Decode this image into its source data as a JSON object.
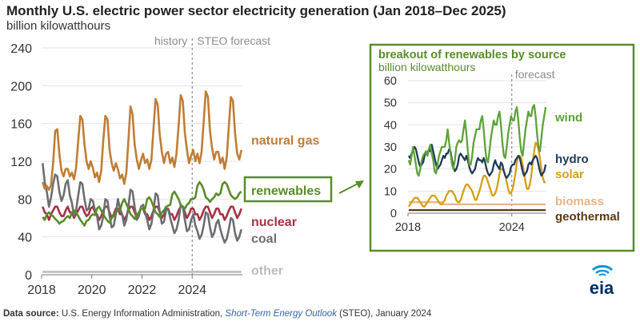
{
  "title": "Monthly U.S. electric power sector electricity generation (Jan 2018–Dec 2025)",
  "subtitle": "billion kilowatthours",
  "source": {
    "label": "Data source:",
    "text1": " U.S. Energy Information Administration, ",
    "link": "Short-Term Energy Outlook",
    "text2": " (STEO), January 2024"
  },
  "logo_text": "eia",
  "colors": {
    "natural_gas": "#c07d35",
    "renewables": "#5b8c2a",
    "nuclear": "#a83243",
    "coal": "#6d6e71",
    "other": "#bcbcbc",
    "wind": "#5fa23a",
    "hydro": "#1f3b5c",
    "solar": "#d4a017",
    "biomass": "#e8b48a",
    "geothermal": "#5a3a12",
    "axis_text": "#333333",
    "divider": "#8c8c8c"
  },
  "chart_data": [
    {
      "type": "line",
      "ylim": [
        0,
        240
      ],
      "yticks": [
        0,
        40,
        80,
        120,
        160,
        200,
        240
      ],
      "xlim": [
        2018,
        2026
      ],
      "xticks": [
        "2018",
        "2020",
        "2022",
        "2024"
      ],
      "x_tick_values": [
        2018,
        2020,
        2022,
        2024
      ],
      "history_label": "history",
      "forecast_label": "STEO forecast",
      "forecast_start": 2024,
      "grid": "horizontal",
      "series": [
        {
          "name": "natural gas",
          "key": "natural_gas",
          "values": [
            98,
            91,
            94,
            90,
            95,
            118,
            152,
            154,
            128,
            110,
            104,
            112,
            112,
            104,
            108,
            101,
            113,
            142,
            168,
            164,
            138,
            120,
            112,
            120,
            113,
            103,
            108,
            98,
            110,
            142,
            168,
            164,
            132,
            118,
            110,
            118,
            112,
            102,
            106,
            96,
            108,
            142,
            178,
            170,
            138,
            122,
            112,
            121,
            128,
            118,
            122,
            112,
            122,
            155,
            186,
            180,
            148,
            130,
            118,
            128,
            130,
            118,
            124,
            114,
            128,
            158,
            190,
            184,
            150,
            132,
            118,
            126,
            132,
            120,
            128,
            118,
            130,
            162,
            194,
            188,
            152,
            134,
            122,
            130,
            130,
            118,
            124,
            112,
            124,
            156,
            188,
            184,
            150,
            128,
            122,
            132
          ]
        },
        {
          "name": "renewables",
          "key": "renewables",
          "values": [
            61,
            58,
            64,
            66,
            63,
            62,
            59,
            57,
            54,
            56,
            57,
            60,
            62,
            60,
            66,
            68,
            66,
            62,
            58,
            55,
            52,
            57,
            58,
            62,
            64,
            63,
            70,
            72,
            68,
            64,
            60,
            57,
            55,
            60,
            62,
            66,
            68,
            68,
            76,
            80,
            75,
            70,
            64,
            62,
            59,
            63,
            66,
            70,
            70,
            70,
            80,
            82,
            78,
            72,
            66,
            64,
            61,
            66,
            68,
            72,
            73,
            74,
            85,
            88,
            84,
            80,
            74,
            72,
            70,
            74,
            76,
            80,
            80,
            82,
            94,
            98,
            95,
            90,
            82,
            80,
            77,
            80,
            82,
            86,
            84,
            86,
            96,
            98,
            96,
            90,
            84,
            82,
            80,
            82,
            86,
            88
          ]
        },
        {
          "name": "nuclear",
          "key": "nuclear",
          "values": [
            72,
            66,
            64,
            58,
            64,
            68,
            72,
            72,
            66,
            62,
            62,
            68,
            72,
            66,
            66,
            60,
            64,
            68,
            72,
            72,
            66,
            62,
            64,
            70,
            72,
            66,
            64,
            58,
            62,
            68,
            72,
            72,
            66,
            60,
            64,
            70,
            70,
            64,
            64,
            58,
            62,
            68,
            72,
            72,
            66,
            60,
            64,
            70,
            70,
            64,
            64,
            58,
            62,
            68,
            72,
            72,
            66,
            60,
            64,
            70,
            70,
            64,
            64,
            58,
            62,
            68,
            72,
            72,
            66,
            60,
            64,
            70,
            70,
            64,
            64,
            58,
            62,
            68,
            72,
            72,
            66,
            60,
            64,
            70,
            70,
            64,
            64,
            58,
            62,
            68,
            72,
            72,
            66,
            60,
            64,
            70
          ]
        },
        {
          "name": "coal",
          "key": "coal",
          "values": [
            118,
            98,
            88,
            72,
            82,
            96,
            106,
            104,
            88,
            78,
            84,
            96,
            100,
            84,
            76,
            62,
            68,
            84,
            98,
            96,
            80,
            68,
            70,
            80,
            78,
            68,
            62,
            48,
            52,
            62,
            80,
            78,
            62,
            50,
            52,
            64,
            80,
            70,
            64,
            52,
            58,
            72,
            90,
            88,
            72,
            58,
            62,
            72,
            74,
            66,
            58,
            48,
            54,
            68,
            86,
            84,
            66,
            54,
            56,
            68,
            70,
            60,
            52,
            44,
            48,
            58,
            74,
            72,
            58,
            46,
            48,
            58,
            64,
            52,
            46,
            38,
            42,
            52,
            66,
            64,
            50,
            40,
            44,
            54,
            58,
            48,
            40,
            34,
            38,
            48,
            60,
            58,
            44,
            36,
            40,
            48
          ]
        },
        {
          "name": "other",
          "key": "other",
          "values": [
            3,
            3,
            3,
            3,
            3,
            3,
            3,
            3,
            3,
            3,
            3,
            3,
            3,
            3,
            3,
            3,
            3,
            3,
            3,
            3,
            3,
            3,
            3,
            3,
            3,
            3,
            3,
            3,
            3,
            3,
            3,
            3,
            3,
            3,
            3,
            3,
            3,
            3,
            3,
            3,
            3,
            3,
            3,
            3,
            3,
            3,
            3,
            3,
            3,
            3,
            3,
            3,
            3,
            3,
            3,
            3,
            3,
            3,
            3,
            3,
            3,
            3,
            3,
            3,
            3,
            3,
            3,
            3,
            3,
            3,
            3,
            3,
            3,
            3,
            3,
            3,
            3,
            3,
            3,
            3,
            3,
            3,
            3,
            3,
            3,
            3,
            3,
            3,
            3,
            3,
            3,
            3,
            3,
            3,
            3,
            3
          ]
        }
      ]
    },
    {
      "type": "line",
      "title": "breakout of renewables by source",
      "ylabel": "billion kilowatthours",
      "ylim": [
        0,
        60
      ],
      "yticks": [
        0,
        10,
        20,
        30,
        40,
        50,
        60
      ],
      "xlim": [
        2018,
        2026
      ],
      "xticks": [
        "2018",
        "2024"
      ],
      "x_tick_values": [
        2018,
        2024
      ],
      "forecast_label": "forecast",
      "forecast_start": 2024,
      "grid": "horizontal",
      "series": [
        {
          "name": "wind",
          "key": "wind",
          "values": [
            24,
            22,
            26,
            30,
            26,
            22,
            18,
            17,
            20,
            24,
            26,
            27,
            28,
            26,
            29,
            31,
            27,
            24,
            19,
            18,
            22,
            26,
            28,
            30,
            30,
            30,
            33,
            38,
            32,
            27,
            22,
            20,
            24,
            30,
            32,
            33,
            32,
            33,
            38,
            42,
            36,
            28,
            22,
            22,
            26,
            32,
            35,
            38,
            38,
            38,
            42,
            44,
            38,
            30,
            24,
            23,
            28,
            34,
            38,
            42,
            40,
            40,
            44,
            46,
            40,
            32,
            26,
            25,
            30,
            36,
            40,
            44,
            42,
            42,
            46,
            48,
            42,
            34,
            28,
            26,
            32,
            38,
            42,
            46,
            44,
            44,
            48,
            49,
            44,
            36,
            30,
            28,
            34,
            40,
            44,
            48
          ]
        },
        {
          "name": "hydro",
          "key": "hydro",
          "values": [
            26,
            25,
            27,
            28,
            30,
            29,
            26,
            23,
            21,
            22,
            23,
            26,
            28,
            27,
            29,
            28,
            31,
            28,
            25,
            22,
            20,
            21,
            22,
            24,
            26,
            25,
            27,
            27,
            29,
            28,
            24,
            21,
            19,
            20,
            22,
            26,
            27,
            26,
            25,
            24,
            26,
            24,
            21,
            19,
            18,
            19,
            20,
            23,
            25,
            24,
            24,
            23,
            25,
            23,
            20,
            18,
            17,
            18,
            19,
            22,
            24,
            22,
            21,
            20,
            23,
            22,
            19,
            17,
            16,
            17,
            18,
            21,
            22,
            22,
            24,
            25,
            26,
            25,
            22,
            19,
            17,
            18,
            19,
            22,
            23,
            22,
            24,
            25,
            26,
            25,
            22,
            19,
            17,
            18,
            19,
            22
          ]
        },
        {
          "name": "solar",
          "key": "solar",
          "values": [
            3,
            4,
            5,
            6,
            7,
            7,
            7,
            6,
            5,
            4,
            3,
            3,
            4,
            5,
            6,
            7,
            8,
            8,
            8,
            7,
            6,
            5,
            4,
            4,
            5,
            6,
            8,
            9,
            10,
            10,
            10,
            9,
            8,
            6,
            5,
            5,
            6,
            8,
            10,
            12,
            13,
            13,
            12,
            11,
            10,
            8,
            6,
            6,
            8,
            10,
            12,
            15,
            17,
            17,
            16,
            14,
            12,
            10,
            8,
            8,
            9,
            11,
            14,
            18,
            20,
            20,
            19,
            17,
            14,
            11,
            9,
            9,
            11,
            14,
            18,
            23,
            26,
            26,
            25,
            22,
            18,
            14,
            11,
            11,
            13,
            17,
            23,
            28,
            32,
            31,
            29,
            25,
            20,
            16,
            14,
            14
          ]
        },
        {
          "name": "biomass",
          "key": "biomass",
          "values": [
            5,
            5,
            5,
            5,
            5,
            5,
            5,
            5,
            5,
            5,
            5,
            5,
            5,
            5,
            5,
            5,
            5,
            5,
            5,
            5,
            5,
            5,
            5,
            5,
            4,
            4,
            4,
            4,
            4,
            4,
            4,
            4,
            4,
            4,
            4,
            4,
            4,
            4,
            4,
            4,
            4,
            4,
            4,
            4,
            4,
            4,
            4,
            4,
            4,
            4,
            4,
            4,
            4,
            4,
            4,
            4,
            4,
            4,
            4,
            4,
            4,
            4,
            4,
            4,
            4,
            4,
            4,
            4,
            4,
            4,
            4,
            4,
            4,
            4,
            4,
            4,
            4,
            4,
            4,
            4,
            4,
            4,
            4,
            4,
            4,
            4,
            4,
            4,
            4,
            4,
            4,
            4,
            4,
            4,
            4,
            4
          ]
        },
        {
          "name": "geothermal",
          "key": "geothermal",
          "values": [
            1.4,
            1.4,
            1.4,
            1.4,
            1.4,
            1.4,
            1.4,
            1.4,
            1.4,
            1.4,
            1.4,
            1.4,
            1.4,
            1.4,
            1.4,
            1.4,
            1.4,
            1.4,
            1.4,
            1.4,
            1.4,
            1.4,
            1.4,
            1.4,
            1.4,
            1.4,
            1.4,
            1.4,
            1.4,
            1.4,
            1.4,
            1.4,
            1.4,
            1.4,
            1.4,
            1.4,
            1.4,
            1.4,
            1.4,
            1.4,
            1.4,
            1.4,
            1.4,
            1.4,
            1.4,
            1.4,
            1.4,
            1.4,
            1.4,
            1.4,
            1.4,
            1.4,
            1.4,
            1.4,
            1.4,
            1.4,
            1.4,
            1.4,
            1.4,
            1.4,
            1.4,
            1.4,
            1.4,
            1.4,
            1.4,
            1.4,
            1.4,
            1.4,
            1.4,
            1.4,
            1.4,
            1.4,
            1.4,
            1.4,
            1.4,
            1.4,
            1.4,
            1.4,
            1.4,
            1.4,
            1.4,
            1.4,
            1.4,
            1.4,
            1.4,
            1.4,
            1.4,
            1.4,
            1.4,
            1.4,
            1.4,
            1.4,
            1.4,
            1.4,
            1.4,
            1.4
          ]
        }
      ]
    }
  ]
}
